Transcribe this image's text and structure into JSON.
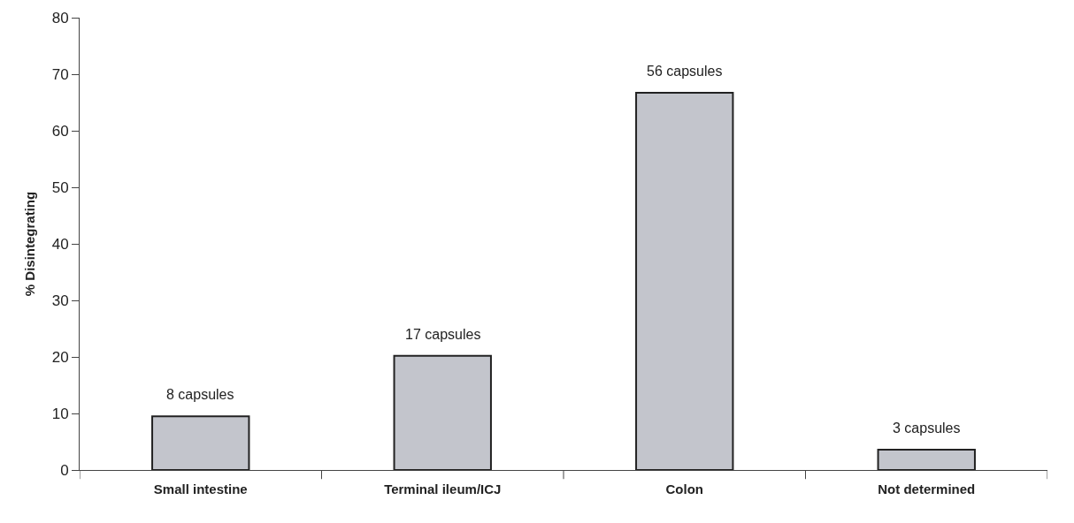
{
  "chart_data": {
    "type": "bar",
    "ylabel": "% Disintegrating",
    "categories": [
      "Small intestine",
      "Terminal ileum/ICJ",
      "Colon",
      "Not determined"
    ],
    "values": [
      9.5,
      20.2,
      66.7,
      3.6
    ],
    "annotations": [
      {
        "text": "8 capsules",
        "x": "Small intestine",
        "y": 9.5
      },
      {
        "text": "17 capsules",
        "x": "Terminal ileum/ICJ",
        "y": 20.2
      },
      {
        "text": "56 capsules",
        "x": "Colon",
        "y": 66.7
      },
      {
        "text": "3 capsules",
        "x": "Not determined",
        "y": 3.6
      }
    ],
    "color": "#c3c5cc",
    "ylim": [
      0,
      80
    ],
    "yticks": [
      0,
      10,
      20,
      30,
      40,
      50,
      60,
      70,
      80
    ],
    "grid": false,
    "legend": false
  }
}
